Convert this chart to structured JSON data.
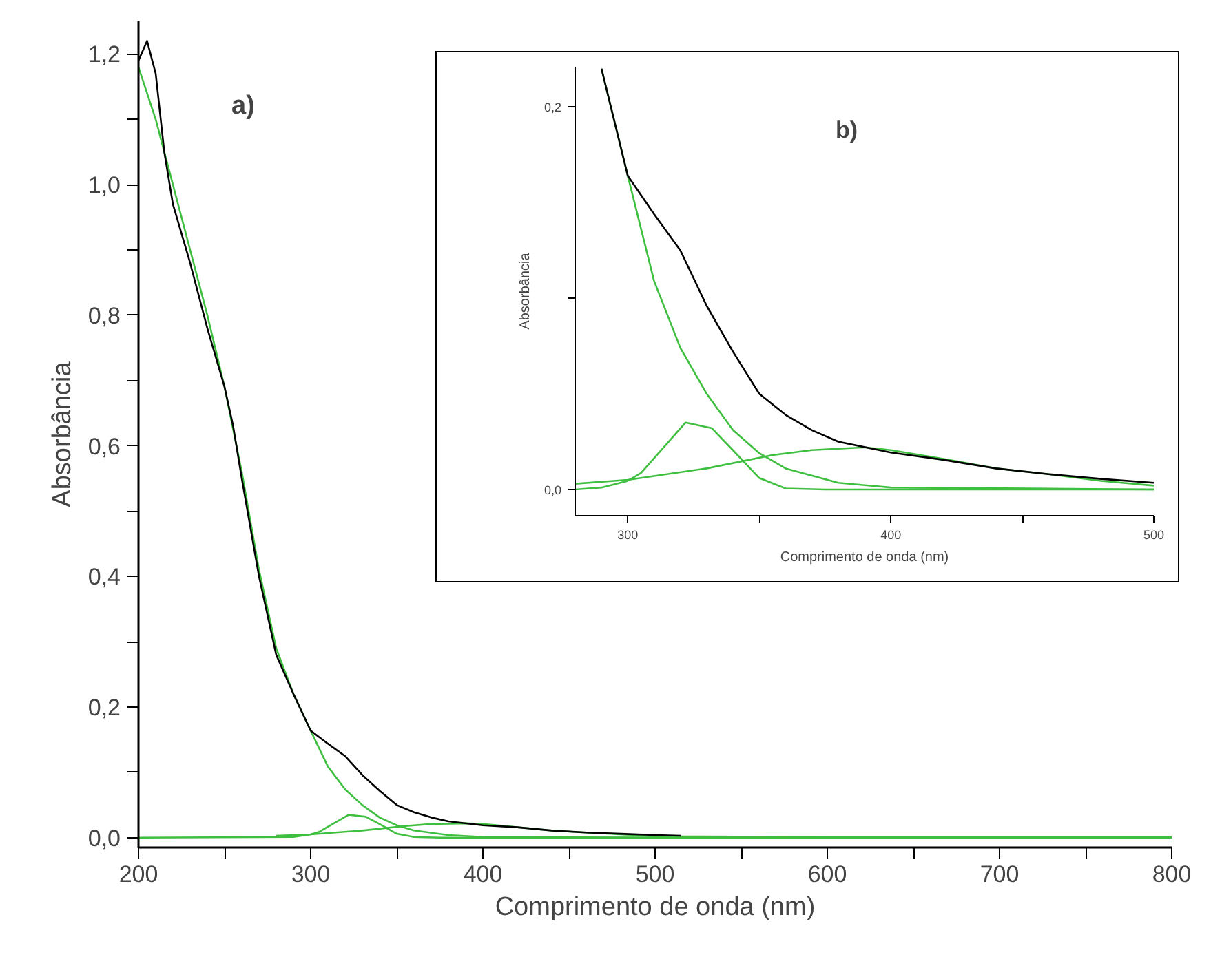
{
  "chart_data": [
    {
      "type": "line",
      "xlabel": "Comprimento de onda (nm)",
      "ylabel": "Absorbância",
      "annotations": [
        "a)"
      ],
      "xlim": [
        200,
        800
      ],
      "ylim": [
        -0.015,
        1.25
      ],
      "xticks": [
        200,
        {
          "value": 250,
          "label": null
        },
        300,
        {
          "value": 350,
          "label": null
        },
        400,
        {
          "value": 450,
          "label": null
        },
        500,
        {
          "value": 550,
          "label": null
        },
        600,
        {
          "value": 650,
          "label": null
        },
        700,
        {
          "value": 750,
          "label": null
        },
        800
      ],
      "yticks": [
        {
          "value": 0,
          "label": "0,0"
        },
        {
          "value": 0.1,
          "label": null
        },
        {
          "value": 0.2,
          "label": "0,2"
        },
        {
          "value": 0.3,
          "label": null
        },
        {
          "value": 0.4,
          "label": "0,4"
        },
        {
          "value": 0.5,
          "label": null
        },
        {
          "value": 0.6,
          "label": "0,6"
        },
        {
          "value": 0.7,
          "label": null
        },
        {
          "value": 0.8,
          "label": "0,8"
        },
        {
          "value": 0.9,
          "label": null
        },
        {
          "value": 1.0,
          "label": "1,0"
        },
        {
          "value": 1.1,
          "label": null
        },
        {
          "value": 1.2,
          "label": "1,2"
        }
      ],
      "grid": false,
      "marker": "none",
      "line_style": "solid",
      "series": [
        {
          "color": "#3fbf3f",
          "x": [
            200,
            210,
            220,
            230,
            240,
            250,
            260,
            270,
            280,
            290,
            300,
            310,
            320,
            330,
            340,
            350,
            360,
            380,
            400,
            500,
            800
          ],
          "values": [
            1.18,
            1.1,
            1.0,
            0.9,
            0.8,
            0.69,
            0.56,
            0.41,
            0.29,
            0.22,
            0.164,
            0.109,
            0.074,
            0.05,
            0.031,
            0.019,
            0.011,
            0.004,
            0.001,
            0,
            0
          ]
        },
        {
          "color": "#3fbf3f",
          "x": [
            200,
            290,
            300,
            305,
            322,
            332,
            340,
            350,
            360,
            375,
            800
          ],
          "values": [
            0,
            0.001,
            0.005,
            0.009,
            0.035,
            0.032,
            0.021,
            0.006,
            0.001,
            0,
            0
          ]
        },
        {
          "color": "#3fbf3f",
          "x": [
            280,
            300,
            330,
            355,
            370,
            390,
            400,
            420,
            440,
            460,
            480,
            500,
            600,
            800
          ],
          "values": [
            0.003,
            0.005,
            0.011,
            0.018,
            0.021,
            0.022,
            0.021,
            0.016,
            0.011,
            0.008,
            0.005,
            0.002,
            0.001,
            0.001
          ]
        },
        {
          "color": "#000000",
          "x": [
            200,
            205,
            210,
            215,
            220,
            230,
            240,
            250,
            255,
            260,
            270,
            280,
            290,
            300,
            310,
            320,
            330,
            340,
            350,
            360,
            370,
            380,
            400,
            420,
            440,
            460,
            480,
            500,
            515
          ],
          "values": [
            1.19,
            1.22,
            1.17,
            1.05,
            0.97,
            0.88,
            0.78,
            0.69,
            0.63,
            0.55,
            0.4,
            0.28,
            0.22,
            0.164,
            0.144,
            0.125,
            0.096,
            0.072,
            0.05,
            0.039,
            0.031,
            0.025,
            0.019,
            0.016,
            0.011,
            0.008,
            0.006,
            0.004,
            0.003
          ]
        }
      ]
    },
    {
      "type": "line",
      "xlabel": "Comprimento de onda (nm)",
      "ylabel": "Absorbância",
      "annotations": [
        "b)"
      ],
      "xlim": [
        280,
        500
      ],
      "ylim": [
        -0.0137,
        0.221
      ],
      "xticks": [
        300,
        {
          "value": 350,
          "label": null
        },
        400,
        {
          "value": 450,
          "label": null
        },
        500
      ],
      "yticks": [
        {
          "value": 0,
          "label": "0,0"
        },
        {
          "value": 0.1,
          "label": null
        },
        {
          "value": 0.2,
          "label": "0,2"
        }
      ],
      "grid": false,
      "marker": "none",
      "line_style": "solid",
      "series": [
        {
          "color": "#3fbf3f",
          "x": [
            290,
            300,
            310,
            320,
            330,
            340,
            350,
            360,
            380,
            400,
            500
          ],
          "values": [
            0.22,
            0.164,
            0.109,
            0.074,
            0.05,
            0.031,
            0.019,
            0.011,
            0.0035,
            0.001,
            0
          ]
        },
        {
          "color": "#3fbf3f",
          "x": [
            280,
            290,
            300,
            305,
            322,
            332,
            340,
            350,
            360,
            375,
            500
          ],
          "values": [
            0,
            0.001,
            0.0045,
            0.0086,
            0.035,
            0.032,
            0.0205,
            0.006,
            0.0005,
            0,
            0
          ]
        },
        {
          "color": "#3fbf3f",
          "x": [
            280,
            300,
            330,
            355,
            370,
            390,
            400,
            420,
            440,
            460,
            480,
            500
          ],
          "values": [
            0.003,
            0.005,
            0.011,
            0.018,
            0.0206,
            0.022,
            0.0206,
            0.016,
            0.011,
            0.008,
            0.0045,
            0.002
          ]
        },
        {
          "color": "#000000",
          "x": [
            290,
            300,
            310,
            320,
            330,
            340,
            350,
            360,
            370,
            380,
            400,
            420,
            440,
            460,
            480,
            500
          ],
          "values": [
            0.22,
            0.164,
            0.144,
            0.125,
            0.096,
            0.072,
            0.05,
            0.039,
            0.031,
            0.025,
            0.0193,
            0.0155,
            0.011,
            0.008,
            0.0055,
            0.0035
          ]
        }
      ]
    }
  ]
}
